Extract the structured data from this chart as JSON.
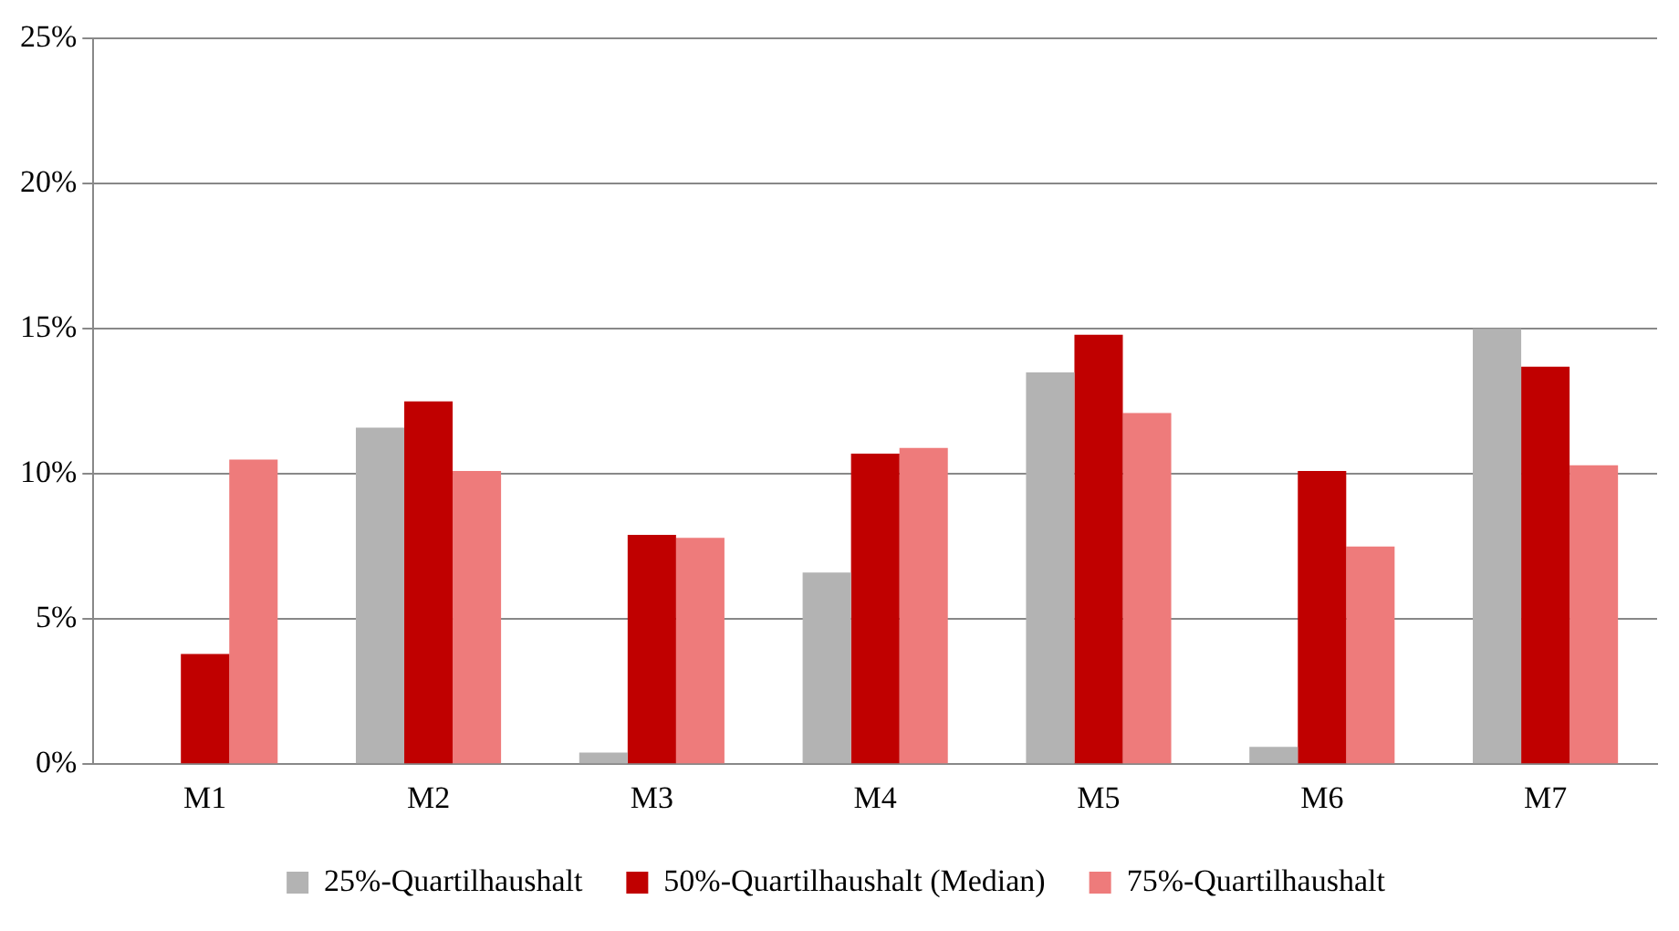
{
  "chart_data": {
    "type": "bar",
    "categories": [
      "M1",
      "M2",
      "M3",
      "M4",
      "M5",
      "M6",
      "M7"
    ],
    "series": [
      {
        "name": "25%-Quartilhaushalt",
        "color": "#b3b3b3",
        "values": [
          0,
          11.6,
          0.4,
          6.6,
          13.5,
          0.6,
          15.0
        ]
      },
      {
        "name": "50%-Quartilhaushalt (Median)",
        "color": "#c00000",
        "values": [
          3.8,
          12.5,
          7.9,
          10.7,
          14.8,
          10.1,
          13.7
        ]
      },
      {
        "name": "75%-Quartilhaushalt",
        "color": "#ee7b7b",
        "values": [
          10.5,
          10.1,
          7.8,
          10.9,
          12.1,
          7.5,
          10.3
        ]
      }
    ],
    "ylim": [
      0,
      25
    ],
    "yticks": [
      {
        "value": 0,
        "label": "0%"
      },
      {
        "value": 5,
        "label": "5%"
      },
      {
        "value": 10,
        "label": "10%"
      },
      {
        "value": 15,
        "label": "15%"
      },
      {
        "value": 20,
        "label": "20%"
      },
      {
        "value": 25,
        "label": "25%"
      }
    ],
    "grid": "y",
    "legend": "bottom"
  }
}
